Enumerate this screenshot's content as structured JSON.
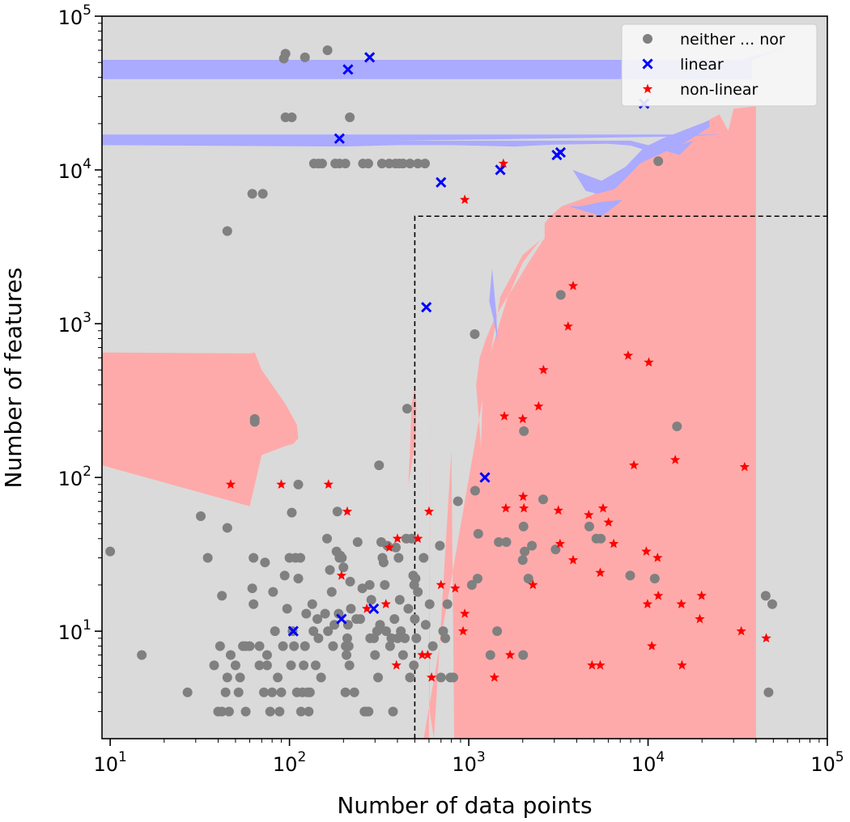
{
  "chart_data": {
    "type": "scatter",
    "xlabel": "Number of data points",
    "ylabel": "Number of features",
    "xscale": "log",
    "yscale": "log",
    "xlim": [
      9,
      100000
    ],
    "ylim": [
      2,
      100000
    ],
    "grid": false,
    "legend_position": "top-right",
    "x_ticks": [
      {
        "base": "10",
        "exp": "1",
        "value": 10
      },
      {
        "base": "10",
        "exp": "2",
        "value": 100
      },
      {
        "base": "10",
        "exp": "3",
        "value": 1000
      },
      {
        "base": "10",
        "exp": "4",
        "value": 10000
      },
      {
        "base": "10",
        "exp": "5",
        "value": 100000
      }
    ],
    "y_ticks": [
      {
        "base": "10",
        "exp": "1",
        "value": 10
      },
      {
        "base": "10",
        "exp": "2",
        "value": 100
      },
      {
        "base": "10",
        "exp": "3",
        "value": 1000
      },
      {
        "base": "10",
        "exp": "4",
        "value": 10000
      },
      {
        "base": "10",
        "exp": "5",
        "value": 100000
      }
    ],
    "background_color": "#dadada",
    "region_colors": {
      "linear": "#aaaaff",
      "non_linear": "#ffaaaa"
    },
    "threshold_box": {
      "x_min": 500,
      "y_min": 2,
      "x_max": 100000,
      "y_max": 5000
    },
    "series": [
      {
        "name": "neither ... nor",
        "marker": "circle",
        "color": "#808080",
        "points": [
          [
            10,
            33
          ],
          [
            15,
            7
          ],
          [
            27,
            4
          ],
          [
            32,
            56
          ],
          [
            35,
            30
          ],
          [
            38,
            6
          ],
          [
            40,
            3
          ],
          [
            41,
            8
          ],
          [
            42,
            17
          ],
          [
            42,
            3
          ],
          [
            44,
            4
          ],
          [
            45,
            47
          ],
          [
            45,
            5
          ],
          [
            46,
            3
          ],
          [
            47,
            7
          ],
          [
            50,
            6
          ],
          [
            52,
            4
          ],
          [
            53,
            5
          ],
          [
            55,
            8
          ],
          [
            57,
            3
          ],
          [
            57,
            8
          ],
          [
            60,
            8
          ],
          [
            62,
            19
          ],
          [
            63,
            15
          ],
          [
            63,
            30
          ],
          [
            64,
            240
          ],
          [
            64,
            230
          ],
          [
            68,
            6
          ],
          [
            68,
            8
          ],
          [
            72,
            4
          ],
          [
            73,
            28
          ],
          [
            75,
            6
          ],
          [
            75,
            7
          ],
          [
            78,
            3
          ],
          [
            80,
            4
          ],
          [
            81,
            18
          ],
          [
            83,
            10
          ],
          [
            86,
            5
          ],
          [
            88,
            3
          ],
          [
            90,
            4
          ],
          [
            92,
            8
          ],
          [
            94,
            23
          ],
          [
            97,
            14
          ],
          [
            100,
            30
          ],
          [
            102,
            6
          ],
          [
            103,
            59
          ],
          [
            104,
            10
          ],
          [
            106,
            8
          ],
          [
            108,
            30
          ],
          [
            110,
            4
          ],
          [
            112,
            22
          ],
          [
            112,
            90
          ],
          [
            115,
            30
          ],
          [
            116,
            3
          ],
          [
            118,
            4
          ],
          [
            120,
            6
          ],
          [
            122,
            8
          ],
          [
            124,
            13
          ],
          [
            126,
            4
          ],
          [
            128,
            3
          ],
          [
            130,
            4
          ],
          [
            134,
            15
          ],
          [
            136,
            10
          ],
          [
            140,
            6
          ],
          [
            143,
            12
          ],
          [
            145,
            9
          ],
          [
            150,
            5
          ],
          [
            158,
            13
          ],
          [
            162,
            40
          ],
          [
            164,
            10
          ],
          [
            168,
            25
          ],
          [
            172,
            18
          ],
          [
            175,
            8
          ],
          [
            178,
            11
          ],
          [
            183,
            33
          ],
          [
            185,
            60
          ],
          [
            188,
            13
          ],
          [
            190,
            30
          ],
          [
            192,
            31
          ],
          [
            196,
            30
          ],
          [
            200,
            26
          ],
          [
            205,
            4
          ],
          [
            206,
            8
          ],
          [
            208,
            7
          ],
          [
            210,
            9
          ],
          [
            212,
            11
          ],
          [
            214,
            8
          ],
          [
            216,
            6
          ],
          [
            218,
            21
          ],
          [
            220,
            14
          ],
          [
            230,
            4
          ],
          [
            236,
            12
          ],
          [
            240,
            38
          ],
          [
            248,
            12
          ],
          [
            255,
            19
          ],
          [
            262,
            3
          ],
          [
            268,
            3
          ],
          [
            276,
            3
          ],
          [
            280,
            20
          ],
          [
            282,
            9
          ],
          [
            286,
            16
          ],
          [
            296,
            9
          ],
          [
            300,
            7
          ],
          [
            308,
            10
          ],
          [
            312,
            5
          ],
          [
            316,
            120
          ],
          [
            320,
            11
          ],
          [
            325,
            38
          ],
          [
            330,
            30
          ],
          [
            335,
            28
          ],
          [
            340,
            20
          ],
          [
            346,
            10
          ],
          [
            352,
            36
          ],
          [
            364,
            8
          ],
          [
            370,
            9
          ],
          [
            378,
            3
          ],
          [
            385,
            12
          ],
          [
            392,
            35
          ],
          [
            402,
            9
          ],
          [
            406,
            30
          ],
          [
            412,
            16
          ],
          [
            418,
            10
          ],
          [
            430,
            7
          ],
          [
            440,
            9
          ],
          [
            448,
            40
          ],
          [
            453,
            280
          ],
          [
            460,
            14
          ],
          [
            470,
            5
          ],
          [
            480,
            40
          ],
          [
            490,
            23
          ],
          [
            494,
            6
          ],
          [
            496,
            20
          ],
          [
            500,
            12
          ],
          [
            505,
            22
          ],
          [
            510,
            9
          ],
          [
            520,
            18
          ],
          [
            560,
            30
          ],
          [
            575,
            11
          ],
          [
            605,
            15
          ],
          [
            630,
            8
          ],
          [
            690,
            36
          ],
          [
            700,
            5
          ],
          [
            720,
            10
          ],
          [
            740,
            9
          ],
          [
            760,
            15
          ],
          [
            790,
            5
          ],
          [
            820,
            5
          ],
          [
            870,
            70
          ],
          [
            1040,
            20
          ],
          [
            1080,
            855
          ],
          [
            1085,
            82
          ],
          [
            1120,
            22
          ],
          [
            1130,
            43
          ],
          [
            1320,
            7
          ],
          [
            1440,
            10
          ],
          [
            1470,
            38
          ],
          [
            1620,
            38
          ],
          [
            2000,
            29
          ],
          [
            2010,
            7
          ],
          [
            2020,
            48
          ],
          [
            2030,
            200
          ],
          [
            2050,
            33
          ],
          [
            2150,
            22
          ],
          [
            2250,
            36
          ],
          [
            2600,
            72
          ],
          [
            3050,
            34
          ],
          [
            3260,
            1540
          ],
          [
            4700,
            48
          ],
          [
            5150,
            40
          ],
          [
            5450,
            40
          ],
          [
            7950,
            23
          ],
          [
            10900,
            22
          ],
          [
            14500,
            215
          ],
          [
            45300,
            17
          ],
          [
            47000,
            4
          ],
          [
            49300,
            15
          ],
          [
            93,
            53000
          ],
          [
            95,
            57000
          ],
          [
            122,
            54000
          ],
          [
            163,
            60000
          ],
          [
            95,
            22000
          ],
          [
            103,
            22000
          ],
          [
            217,
            22000
          ],
          [
            45,
            4000
          ],
          [
            62,
            7000
          ],
          [
            71,
            7000
          ],
          [
            137,
            11000
          ],
          [
            145,
            11000
          ],
          [
            152,
            11000
          ],
          [
            180,
            11000
          ],
          [
            190,
            11000
          ],
          [
            205,
            11000
          ],
          [
            257,
            11000
          ],
          [
            275,
            11000
          ],
          [
            328,
            11000
          ],
          [
            360,
            11000
          ],
          [
            390,
            11000
          ],
          [
            410,
            11000
          ],
          [
            430,
            11000
          ],
          [
            470,
            11000
          ],
          [
            520,
            11000
          ],
          [
            570,
            11000
          ],
          [
            11400,
            11400
          ]
        ]
      },
      {
        "name": "linear",
        "marker": "x",
        "color": "#0000ff",
        "points": [
          [
            212,
            45000
          ],
          [
            280,
            54000
          ],
          [
            190,
            16000
          ],
          [
            1500,
            10000
          ],
          [
            700,
            8300
          ],
          [
            3100,
            12500
          ],
          [
            3250,
            13000
          ],
          [
            9500,
            27000
          ],
          [
            580,
            1280
          ],
          [
            1230,
            100
          ],
          [
            105,
            10
          ],
          [
            195,
            12
          ],
          [
            295,
            14
          ]
        ]
      },
      {
        "name": "non-linear",
        "marker": "star",
        "color": "#ff0000",
        "points": [
          [
            47,
            90
          ],
          [
            90,
            90
          ],
          [
            165,
            90
          ],
          [
            210,
            60
          ],
          [
            195,
            23
          ],
          [
            270,
            14
          ],
          [
            345,
            15
          ],
          [
            360,
            35
          ],
          [
            395,
            6
          ],
          [
            400,
            40
          ],
          [
            520,
            40
          ],
          [
            550,
            7
          ],
          [
            590,
            7
          ],
          [
            600,
            60
          ],
          [
            620,
            5
          ],
          [
            700,
            20
          ],
          [
            840,
            19
          ],
          [
            930,
            10
          ],
          [
            950,
            13
          ],
          [
            1390,
            5
          ],
          [
            1580,
            250
          ],
          [
            1610,
            63
          ],
          [
            1700,
            7
          ],
          [
            1560,
            11000
          ],
          [
            950,
            6400
          ],
          [
            2000,
            240
          ],
          [
            2010,
            75
          ],
          [
            2030,
            63
          ],
          [
            2280,
            20
          ],
          [
            2450,
            290
          ],
          [
            2610,
            500
          ],
          [
            3160,
            61
          ],
          [
            3230,
            37
          ],
          [
            3580,
            960
          ],
          [
            3820,
            1760
          ],
          [
            3820,
            29
          ],
          [
            4870,
            6
          ],
          [
            4670,
            57
          ],
          [
            5410,
            6
          ],
          [
            5410,
            24
          ],
          [
            5610,
            63
          ],
          [
            6020,
            51
          ],
          [
            6430,
            37
          ],
          [
            7740,
            620
          ],
          [
            8340,
            120
          ],
          [
            9780,
            33
          ],
          [
            9930,
            15
          ],
          [
            10100,
            560
          ],
          [
            10500,
            8
          ],
          [
            11300,
            30
          ],
          [
            11400,
            17
          ],
          [
            14180,
            130
          ],
          [
            15340,
            15
          ],
          [
            15460,
            6
          ],
          [
            19430,
            12
          ],
          [
            19900,
            17
          ],
          [
            33100,
            10
          ],
          [
            34560,
            117
          ],
          [
            45600,
            9
          ]
        ]
      }
    ]
  }
}
